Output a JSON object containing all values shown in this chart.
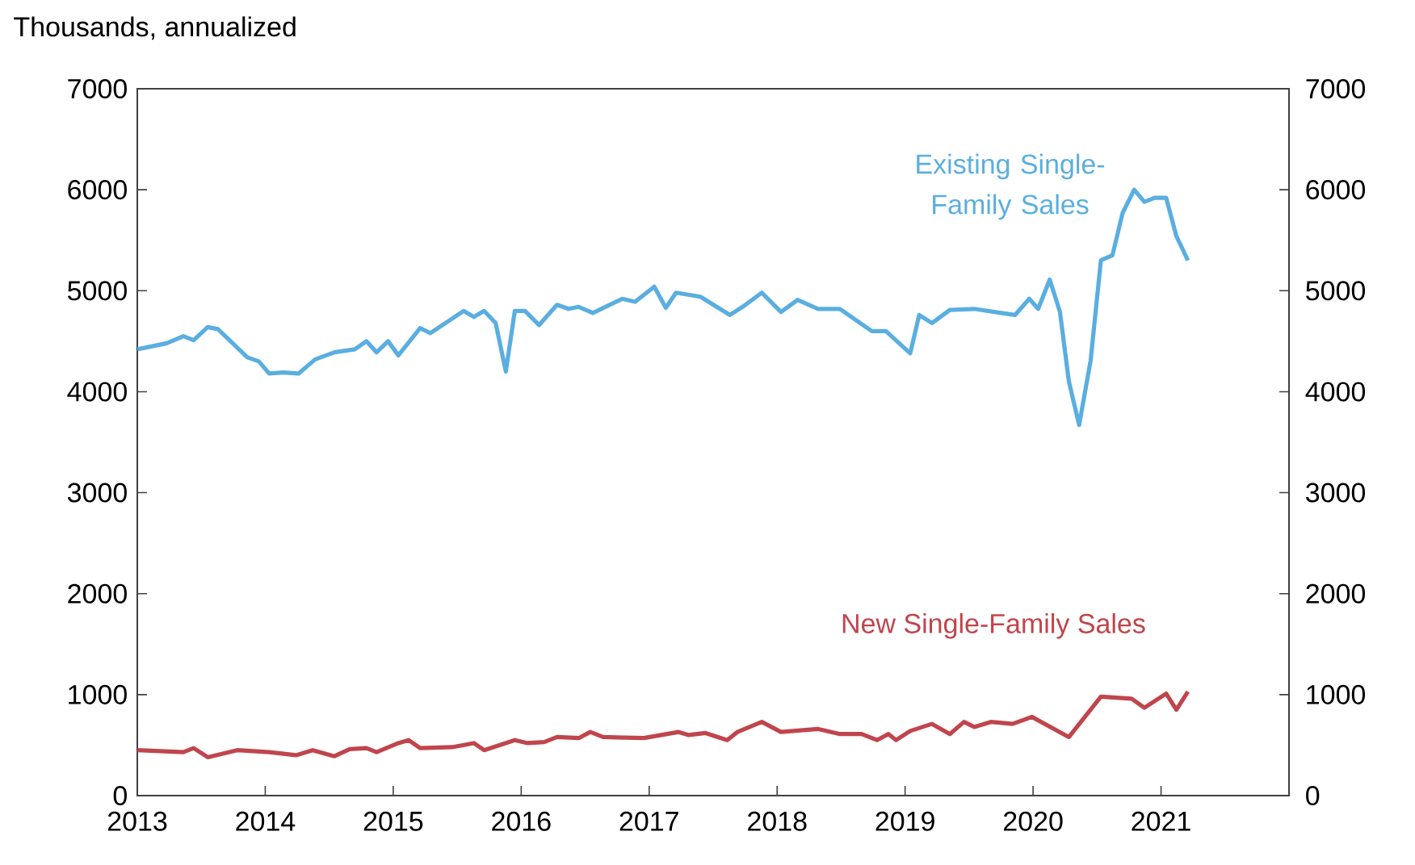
{
  "chart_data": {
    "type": "line",
    "ylabel": "Thousands, annualized",
    "xlim": [
      2013,
      2022
    ],
    "xticks": [
      2013,
      2014,
      2015,
      2016,
      2017,
      2018,
      2019,
      2020,
      2021
    ],
    "ylim": [
      0,
      7000
    ],
    "yticks": [
      0,
      1000,
      2000,
      3000,
      4000,
      5000,
      6000,
      7000
    ],
    "y2lim": [
      0,
      7000
    ],
    "y2ticks": [
      0,
      1000,
      2000,
      3000,
      4000,
      5000,
      6000,
      7000
    ],
    "grid": false,
    "legend": false,
    "series": [
      {
        "name": "Existing Single-Family Sales",
        "color": "#5aaee0",
        "x": [
          2013.0,
          2013.23,
          2013.36,
          2013.44,
          2013.55,
          2013.63,
          2013.86,
          2013.95,
          2014.03,
          2014.14,
          2014.26,
          2014.39,
          2014.54,
          2014.7,
          2014.79,
          2014.87,
          2014.96,
          2015.04,
          2015.21,
          2015.29,
          2015.55,
          2015.63,
          2015.71,
          2015.8,
          2015.88,
          2015.95,
          2016.03,
          2016.14,
          2016.28,
          2016.37,
          2016.45,
          2016.56,
          2016.79,
          2016.89,
          2017.04,
          2017.13,
          2017.21,
          2017.4,
          2017.63,
          2017.73,
          2017.88,
          2018.03,
          2018.16,
          2018.32,
          2018.49,
          2018.74,
          2018.85,
          2019.04,
          2019.11,
          2019.21,
          2019.35,
          2019.54,
          2019.75,
          2019.86,
          2019.97,
          2020.04,
          2020.13,
          2020.21,
          2020.28,
          2020.36,
          2020.45,
          2020.53,
          2020.62,
          2020.7,
          2020.79,
          2020.87,
          2020.95,
          2021.04,
          2021.12,
          2021.21
        ],
        "values": [
          4420,
          4480,
          4550,
          4510,
          4640,
          4620,
          4340,
          4300,
          4180,
          4190,
          4180,
          4320,
          4390,
          4420,
          4500,
          4390,
          4500,
          4360,
          4630,
          4580,
          4800,
          4740,
          4800,
          4680,
          4200,
          4800,
          4800,
          4660,
          4860,
          4820,
          4840,
          4780,
          4920,
          4890,
          5040,
          4830,
          4980,
          4940,
          4760,
          4840,
          4980,
          4790,
          4910,
          4820,
          4820,
          4600,
          4600,
          4380,
          4760,
          4680,
          4810,
          4820,
          4780,
          4760,
          4920,
          4820,
          5110,
          4790,
          4100,
          3670,
          4310,
          5300,
          5350,
          5770,
          6000,
          5880,
          5920,
          5920,
          5540,
          5300
        ]
      },
      {
        "name": "New Single-Family Sales",
        "color": "#c0454c",
        "x": [
          2013.0,
          2013.36,
          2013.44,
          2013.55,
          2013.78,
          2014.03,
          2014.24,
          2014.37,
          2014.54,
          2014.66,
          2014.79,
          2014.87,
          2015.04,
          2015.12,
          2015.21,
          2015.46,
          2015.63,
          2015.71,
          2015.95,
          2016.05,
          2016.18,
          2016.28,
          2016.45,
          2016.54,
          2016.64,
          2016.96,
          2017.23,
          2017.31,
          2017.44,
          2017.61,
          2017.69,
          2017.88,
          2018.03,
          2018.32,
          2018.49,
          2018.66,
          2018.78,
          2018.87,
          2018.93,
          2019.04,
          2019.21,
          2019.35,
          2019.46,
          2019.54,
          2019.67,
          2019.84,
          2019.99,
          2020.28,
          2020.53,
          2020.77,
          2020.87,
          2021.04,
          2021.12,
          2021.21
        ],
        "values": [
          450,
          430,
          470,
          380,
          450,
          430,
          400,
          450,
          390,
          460,
          470,
          430,
          520,
          550,
          470,
          480,
          520,
          450,
          550,
          520,
          530,
          580,
          570,
          630,
          580,
          570,
          630,
          600,
          620,
          550,
          630,
          730,
          630,
          660,
          610,
          610,
          550,
          610,
          550,
          640,
          710,
          610,
          730,
          680,
          730,
          710,
          780,
          580,
          980,
          960,
          870,
          1010,
          850,
          1030
        ]
      }
    ]
  }
}
